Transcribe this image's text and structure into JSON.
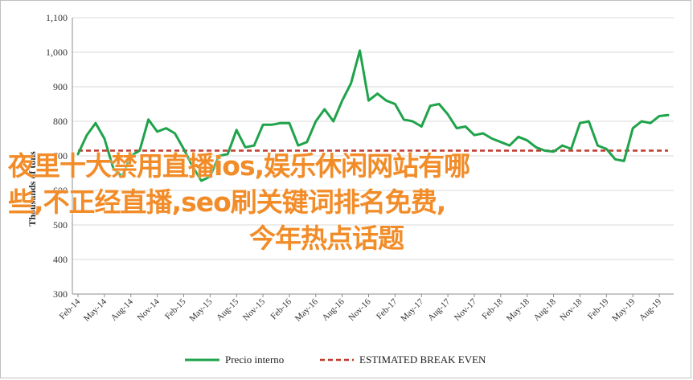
{
  "chart_data": {
    "type": "line",
    "ylabel": "Thousands of tons",
    "ylim": [
      300,
      1100
    ],
    "yticks": [
      300,
      400,
      500,
      600,
      700,
      800,
      900,
      1000,
      1100
    ],
    "ytick_labels": [
      "300",
      "400",
      "500",
      "600",
      "700",
      "800",
      "900",
      "1,000",
      "1,100"
    ],
    "xtick_labels": [
      "Feb-14",
      "May-14",
      "Aug-14",
      "Nov-14",
      "Feb-15",
      "May-15",
      "Aug-15",
      "Nov-15",
      "Feb-16",
      "May-16",
      "Aug-16",
      "Nov-16",
      "Feb-17",
      "May-17",
      "Aug-17",
      "Nov-17",
      "Feb-18",
      "May-18",
      "Aug-18",
      "Nov-18",
      "Feb-19",
      "May-19",
      "Aug-19"
    ],
    "start_month": "Feb-14",
    "grid": "horizontal",
    "legend_position": "bottom",
    "colors": {
      "series": "#1fa34a",
      "break_even": "#c0392b",
      "grid": "#d9d9d9"
    },
    "series": [
      {
        "name": "Precio interno",
        "style": "solid",
        "values": [
          705,
          760,
          795,
          750,
          665,
          640,
          700,
          715,
          805,
          770,
          780,
          765,
          720,
          670,
          628,
          640,
          700,
          705,
          775,
          725,
          730,
          790,
          790,
          795,
          795,
          730,
          740,
          800,
          835,
          800,
          860,
          910,
          1005,
          860,
          880,
          860,
          850,
          805,
          800,
          785,
          845,
          850,
          820,
          780,
          785,
          760,
          765,
          750,
          740,
          730,
          755,
          745,
          725,
          715,
          712,
          730,
          720,
          795,
          800,
          730,
          720,
          690,
          685,
          780,
          800,
          795,
          815,
          818
        ]
      },
      {
        "name": "ESTIMATED BREAK EVEN",
        "style": "dashed",
        "values": [
          715,
          715
        ]
      }
    ]
  },
  "overlay": {
    "line1": "夜里十大禁用直播ios,娱乐休闲网站有哪",
    "line2": "些,不正经直播,seo刷关键词排名免费,",
    "line3": "今年热点话题"
  }
}
